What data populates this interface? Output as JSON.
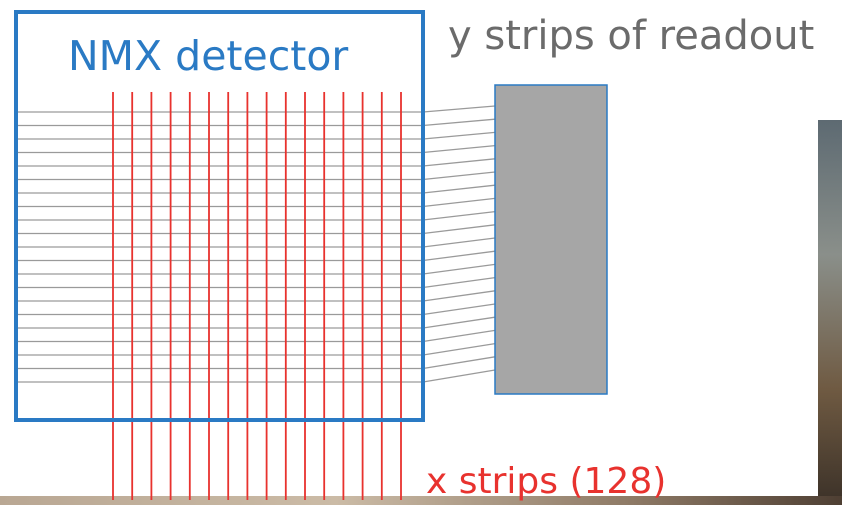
{
  "detector": {
    "title": "NMX detector",
    "border_color": "#2a7ac4",
    "y_strip_lines": 21,
    "x_strip_lines": 16
  },
  "readout": {
    "label": "y strips of readout",
    "fill_color": "#a6a6a6"
  },
  "x_strips": {
    "label": "x strips (128)",
    "color": "#e8322e"
  },
  "colors": {
    "y_strip_line": "#9a9a9a",
    "background": "#ffffff"
  }
}
